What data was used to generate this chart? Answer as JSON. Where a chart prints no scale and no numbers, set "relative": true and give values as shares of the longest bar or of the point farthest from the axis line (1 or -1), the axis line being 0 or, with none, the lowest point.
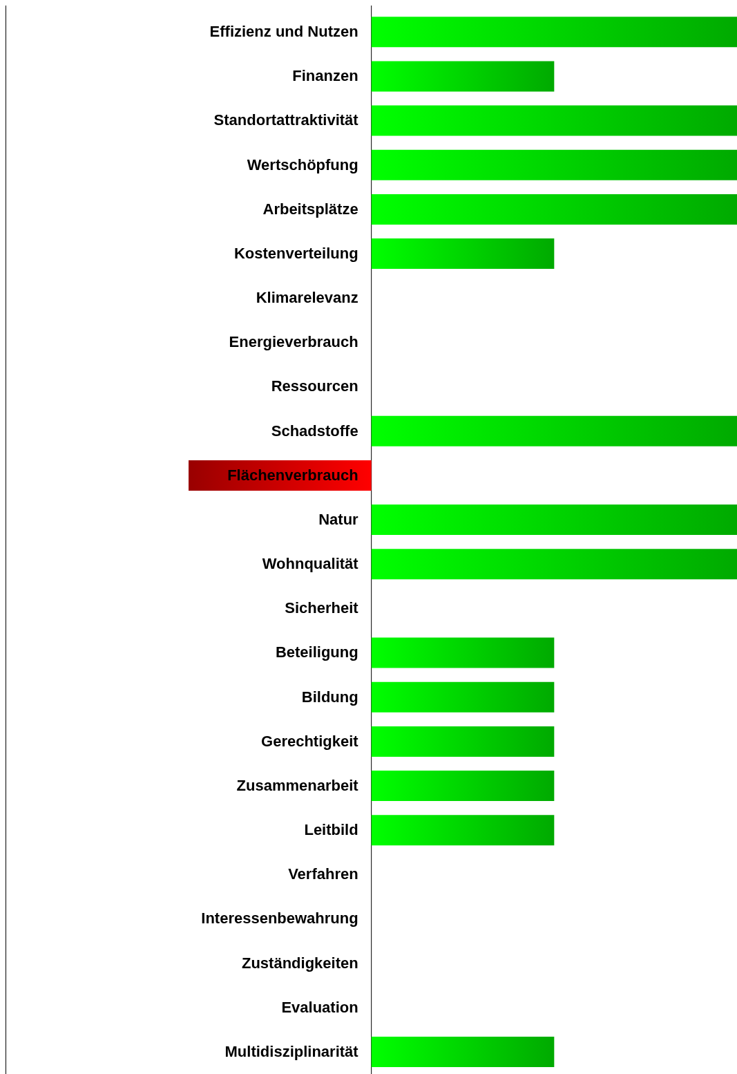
{
  "chart_data": {
    "type": "bar",
    "orientation": "horizontal",
    "relative": true,
    "categories": [
      "Effizienz und Nutzen",
      "Finanzen",
      "Standortattraktivität",
      "Wertschöpfung",
      "Arbeitsplätze",
      "Kostenverteilung",
      "Klimarelevanz",
      "Energieverbrauch",
      "Ressourcen",
      "Schadstoffe",
      "Flächenverbrauch",
      "Natur",
      "Wohnqualität",
      "Sicherheit",
      "Beteiligung",
      "Bildung",
      "Gerechtigkeit",
      "Zusammenarbeit",
      "Leitbild",
      "Verfahren",
      "Interessenbewahrung",
      "Zuständigkeiten",
      "Evaluation",
      "Multidisziplinarität"
    ],
    "values": [
      1,
      0.5,
      1,
      1,
      1,
      0.5,
      0,
      0,
      0,
      1,
      -0.5,
      1,
      1,
      0,
      0.5,
      0.5,
      0.5,
      0.5,
      0.5,
      0,
      0,
      0,
      0,
      0.5
    ],
    "colors": [
      "#00aa00",
      "#00aa00",
      "#00aa00",
      "#00aa00",
      "#00aa00",
      "#00aa00",
      "#00aa00",
      "#00aa00",
      "#00aa00",
      "#00aa00",
      "#990000",
      "#00aa00",
      "#00aa00",
      "#00aa00",
      "#00aa00",
      "#00aa00",
      "#00aa00",
      "#00aa00",
      "#00aa00",
      "#00aa00",
      "#00aa00",
      "#00aa00",
      "#00aa00",
      "#00aa00"
    ],
    "legend": false
  }
}
